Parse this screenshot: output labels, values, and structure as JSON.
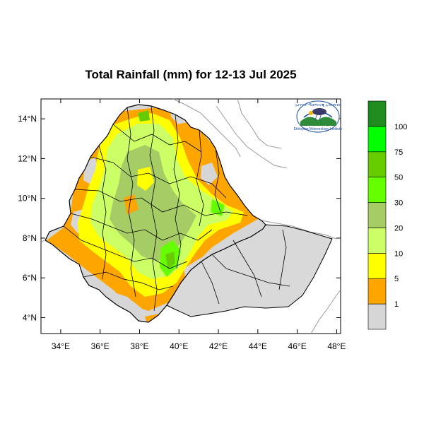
{
  "title": "Total Rainfall (mm) for 12-13 Jul 2025",
  "map": {
    "lon_range": [
      33,
      48.2
    ],
    "lat_range": [
      3.2,
      15
    ],
    "x_ticks": [
      "34°E",
      "36°E",
      "38°E",
      "40°E",
      "42°E",
      "44°E",
      "46°E",
      "48°E"
    ],
    "x_tick_values": [
      34,
      36,
      38,
      40,
      42,
      44,
      46,
      48
    ],
    "y_ticks": [
      "4°N",
      "6°N",
      "8°N",
      "10°N",
      "12°N",
      "14°N"
    ],
    "y_tick_values": [
      4,
      6,
      8,
      10,
      12,
      14
    ]
  },
  "legend": {
    "labels": [
      "1",
      "5",
      "10",
      "20",
      "30",
      "50",
      "75",
      "100"
    ],
    "colors": [
      "#d6d6d6",
      "#ffa500",
      "#ffff00",
      "#ccff66",
      "#a6cc66",
      "#66ff00",
      "#66cc00",
      "#00ff00",
      "#1f8c1f"
    ]
  },
  "logo": {
    "text_top": "ኢትዮጵያ ሚቲዎሮሎጂ ኢንስቲትዩት",
    "text_bottom": "Ethiopian Meteorology Institute"
  }
}
